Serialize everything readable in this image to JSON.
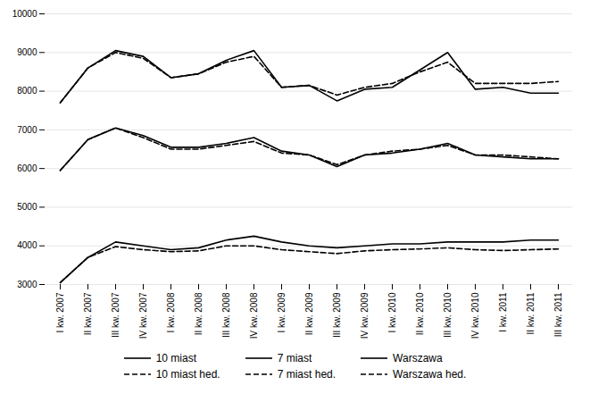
{
  "chart_data": {
    "type": "line",
    "categories": [
      "I kw. 2007",
      "II kw. 2007",
      "III kw. 2007",
      "IV kw. 2007",
      "I kw. 2008",
      "II kw. 2008",
      "III kw. 2008",
      "IV kw. 2008",
      "I kw. 2009",
      "II kw. 2009",
      "III kw. 2009",
      "IV kw. 2009",
      "I kw. 2010",
      "II kw. 2010",
      "III kw. 2010",
      "IV kw. 2010",
      "I kw. 2011",
      "II kw. 2011",
      "III kw. 2011"
    ],
    "series": [
      {
        "name": "10 miast",
        "line_style": "solid",
        "values": [
          3050,
          3700,
          4100,
          4000,
          3900,
          3950,
          4150,
          4250,
          4100,
          4000,
          3950,
          4000,
          4050,
          4050,
          4100,
          4100,
          4100,
          4150,
          4150
        ]
      },
      {
        "name": "7 miast",
        "line_style": "solid",
        "values": [
          5950,
          6750,
          7050,
          6850,
          6550,
          6550,
          6650,
          6800,
          6450,
          6350,
          6050,
          6350,
          6400,
          6500,
          6650,
          6350,
          6300,
          6250,
          6250
        ]
      },
      {
        "name": "Warszawa",
        "line_style": "solid",
        "values": [
          7700,
          8600,
          9050,
          8900,
          8350,
          8450,
          8800,
          9050,
          8100,
          8150,
          7750,
          8050,
          8100,
          8550,
          9000,
          8050,
          8100,
          7950,
          7950
        ]
      },
      {
        "name": "10 miast hed.",
        "line_style": "dashed",
        "values": [
          3050,
          3700,
          3980,
          3900,
          3850,
          3870,
          4000,
          4000,
          3900,
          3850,
          3800,
          3870,
          3900,
          3920,
          3950,
          3900,
          3880,
          3900,
          3920
        ]
      },
      {
        "name": "7 miast hed.",
        "line_style": "dashed",
        "values": [
          5950,
          6750,
          7050,
          6800,
          6500,
          6500,
          6600,
          6700,
          6400,
          6350,
          6100,
          6350,
          6450,
          6500,
          6600,
          6350,
          6350,
          6300,
          6250
        ]
      },
      {
        "name": "Warszawa hed.",
        "line_style": "dashed",
        "values": [
          7700,
          8600,
          9000,
          8850,
          8350,
          8450,
          8750,
          8900,
          8100,
          8150,
          7900,
          8100,
          8200,
          8500,
          8750,
          8200,
          8200,
          8200,
          8250
        ]
      }
    ],
    "ylim": [
      3000,
      10000
    ],
    "yticks": [
      3000,
      4000,
      5000,
      6000,
      7000,
      8000,
      9000,
      10000
    ],
    "grid": true,
    "legend": "bottom"
  }
}
